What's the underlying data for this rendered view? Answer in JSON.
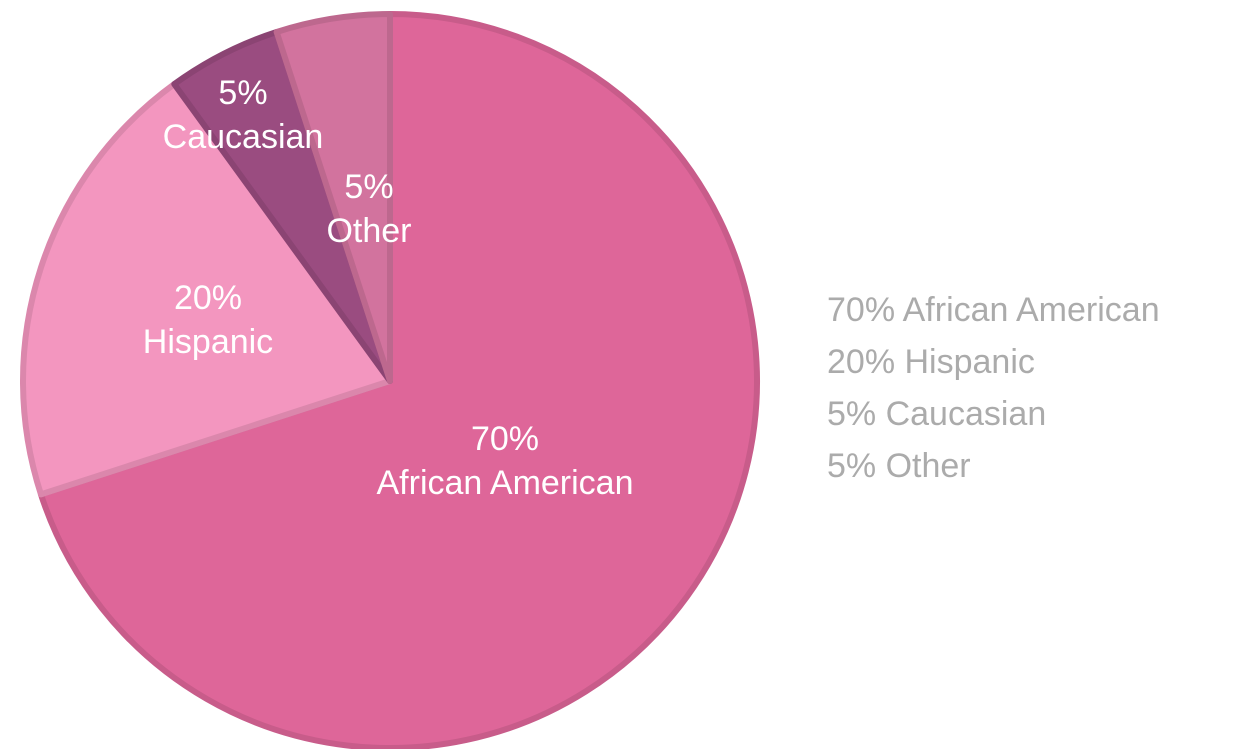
{
  "chart_data": {
    "type": "pie",
    "slices": [
      {
        "label": "African American",
        "value": 70,
        "display": "70%",
        "color": "#de6699"
      },
      {
        "label": "Hispanic",
        "value": 20,
        "display": "20%",
        "color": "#f396bf"
      },
      {
        "label": "Caucasian",
        "value": 5,
        "display": "5%",
        "color": "#9a4c80"
      },
      {
        "label": "Other",
        "value": 5,
        "display": "5%",
        "color": "#d2739e"
      }
    ],
    "legend": {
      "position": "right",
      "color": "#ababab",
      "entries": [
        "70% African American",
        "20% Hispanic",
        "5% Caucasian",
        "5% Other"
      ]
    }
  }
}
